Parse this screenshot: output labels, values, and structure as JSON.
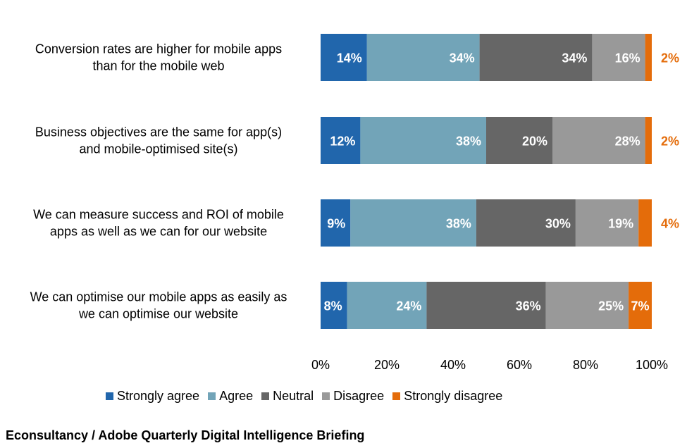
{
  "chart_data": {
    "type": "bar",
    "orientation": "horizontal",
    "stacked": true,
    "categories": [
      [
        "Conversion rates are higher for mobile apps",
        "than for the mobile web"
      ],
      [
        "Business objectives are the same for app(s)",
        "and mobile-optimised site(s)"
      ],
      [
        "We can measure success and ROI of mobile",
        "apps as well as we can for our website"
      ],
      [
        "We can optimise our mobile apps as easily as",
        "we can optimise our website"
      ]
    ],
    "series": [
      {
        "name": "Strongly agree",
        "color": "#2166AC",
        "values": [
          14,
          12,
          9,
          8
        ]
      },
      {
        "name": "Agree",
        "color": "#72A4B8",
        "values": [
          34,
          38,
          38,
          24
        ]
      },
      {
        "name": "Neutral",
        "color": "#666666",
        "values": [
          34,
          20,
          30,
          36
        ]
      },
      {
        "name": "Disagree",
        "color": "#999999",
        "values": [
          16,
          28,
          19,
          25
        ]
      },
      {
        "name": "Strongly disagree",
        "color": "#E46C0A",
        "values": [
          2,
          2,
          4,
          7
        ]
      }
    ],
    "value_suffix": "%",
    "xlim": [
      0,
      100
    ],
    "xticks": [
      "0%",
      "20%",
      "40%",
      "60%",
      "80%",
      "100%"
    ],
    "legend_position": "bottom",
    "outside_label_color": "#E46C0A"
  },
  "source": "Econsultancy / Adobe Quarterly Digital Intelligence Briefing"
}
